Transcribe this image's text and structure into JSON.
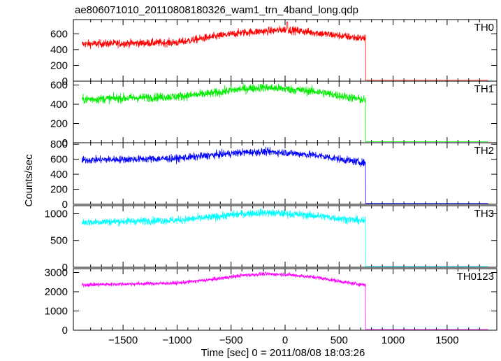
{
  "title": "ae806071010_20110808180326_wam1_trn_4band_long.qdp",
  "ylabel": "Counts/sec",
  "xlabel": "Time [sec] 0 = 2011/08/08 18:03:26",
  "chart_data": {
    "type": "line",
    "title": "ae806071010_20110808180326_wam1_trn_4band_long.qdp",
    "xlabel": "Time [sec] 0 = 2011/08/08 18:03:26",
    "ylabel": "Counts/sec",
    "xlim": [
      -1960,
      1960
    ],
    "x_ticks": [
      -1500,
      -1000,
      -500,
      0,
      500,
      1000,
      1500
    ],
    "x_tick_labels": [
      "−1500",
      "−1000",
      "−500",
      "0",
      "500",
      "1000",
      "1500"
    ],
    "x_start": -1880,
    "x_end": 1880,
    "drop_time": 745,
    "series": [
      {
        "name": "TH0",
        "color": "#ff0000",
        "ylim": [
          0,
          780
        ],
        "yticks": [
          0,
          200,
          400,
          600
        ],
        "ytick_labels": [
          "0",
          "200",
          "400",
          "600"
        ],
        "profile": [
          [
            -1880,
            470
          ],
          [
            -1000,
            490
          ],
          [
            -700,
            555
          ],
          [
            -400,
            615
          ],
          [
            -100,
            640
          ],
          [
            0,
            655
          ],
          [
            300,
            610
          ],
          [
            600,
            560
          ],
          [
            745,
            540
          ]
        ],
        "noise": 35,
        "spike_x": 20,
        "spike_y": 750,
        "after_level": 12
      },
      {
        "name": "TH1",
        "color": "#00ee00",
        "ylim": [
          0,
          640
        ],
        "yticks": [
          0,
          200,
          400,
          600
        ],
        "ytick_labels": [
          "0",
          "200",
          "400",
          "600"
        ],
        "profile": [
          [
            -1880,
            450
          ],
          [
            -1000,
            480
          ],
          [
            -700,
            510
          ],
          [
            -400,
            560
          ],
          [
            -200,
            575
          ],
          [
            0,
            560
          ],
          [
            300,
            530
          ],
          [
            600,
            470
          ],
          [
            745,
            440
          ]
        ],
        "noise": 32,
        "after_level": 10
      },
      {
        "name": "TH2",
        "color": "#0000ff",
        "ylim": [
          0,
          820
        ],
        "yticks": [
          0,
          200,
          400,
          600,
          800
        ],
        "ytick_labels": [
          "0",
          "200",
          "400",
          "600",
          "800"
        ],
        "profile": [
          [
            -1880,
            590
          ],
          [
            -1000,
            610
          ],
          [
            -700,
            650
          ],
          [
            -400,
            690
          ],
          [
            -200,
            700
          ],
          [
            0,
            690
          ],
          [
            300,
            650
          ],
          [
            600,
            580
          ],
          [
            745,
            550
          ]
        ],
        "noise": 35,
        "after_level": 12
      },
      {
        "name": "TH3",
        "color": "#00ffff",
        "ylim": [
          0,
          1150
        ],
        "yticks": [
          0,
          500,
          1000
        ],
        "ytick_labels": [
          "0",
          "500",
          "1000"
        ],
        "profile": [
          [
            -1880,
            840
          ],
          [
            -1000,
            880
          ],
          [
            -700,
            930
          ],
          [
            -400,
            1000
          ],
          [
            -200,
            1020
          ],
          [
            0,
            1000
          ],
          [
            300,
            960
          ],
          [
            600,
            890
          ],
          [
            745,
            860
          ]
        ],
        "noise": 50,
        "after_level": 15
      },
      {
        "name": "TH0123",
        "color": "#ff00ff",
        "ylim": [
          0,
          3200
        ],
        "yticks": [
          0,
          1000,
          2000,
          3000
        ],
        "ytick_labels": [
          "0",
          "1000",
          "2000",
          "3000"
        ],
        "profile": [
          [
            -1880,
            2360
          ],
          [
            -1000,
            2450
          ],
          [
            -700,
            2620
          ],
          [
            -400,
            2850
          ],
          [
            -200,
            2920
          ],
          [
            0,
            2900
          ],
          [
            300,
            2740
          ],
          [
            600,
            2450
          ],
          [
            745,
            2360
          ]
        ],
        "noise": 70,
        "after_level": 40
      }
    ]
  }
}
